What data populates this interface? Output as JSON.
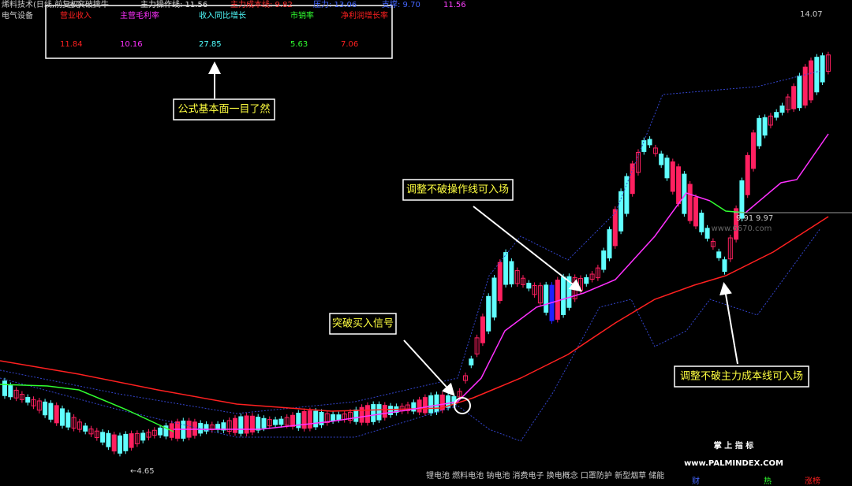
{
  "header": {
    "stock": "烯料技术(日线,前复权)",
    "indicator": "◎ 突破擒牛",
    "items": [
      {
        "text": "主力操作线: 11.56",
        "color": "#dddddd"
      },
      {
        "text": "主力成本线: 9.82",
        "color": "#ff3030"
      },
      {
        "text": "压力: 13.06",
        "color": "#4466ff"
      },
      {
        "text": "支撑: 9.70",
        "color": "#4466ff"
      },
      {
        "text": "11.56",
        "color": "#ff40ff"
      }
    ],
    "sector": "电气设备"
  },
  "info_box": {
    "columns": [
      {
        "label": "营业收入",
        "value": "11.84",
        "color": "#ff2020"
      },
      {
        "label": "主营毛利率",
        "value": "10.16",
        "color": "#ff30ff"
      },
      {
        "label": "收入同比增长",
        "value": "27.85",
        "color": "#50ffff"
      },
      {
        "label": "市销率",
        "value": "5.63",
        "color": "#30ff30"
      },
      {
        "label": "净利润增长率",
        "value": "7.06",
        "color": "#ff2020"
      }
    ]
  },
  "callouts": [
    "公式基本面一目了然",
    "调整不破操作线可入场",
    "突破买入信号",
    "调整不破主力成本线可入场"
  ],
  "price_labels": {
    "high": "14.07",
    "low": "←4.65",
    "mid1": "9.91",
    "mid2": "9.97"
  },
  "watermarks": {
    "site1": "www.6670.com",
    "brand": "掌 上 指 标",
    "site2": "www.PALMINDEX.COM"
  },
  "concepts": "锂电池 燃料电池 钠电池 消费电子 换电概念 口罩防护 新型烟草 储能",
  "badges": [
    "财",
    "热",
    "涨榜"
  ]
}
